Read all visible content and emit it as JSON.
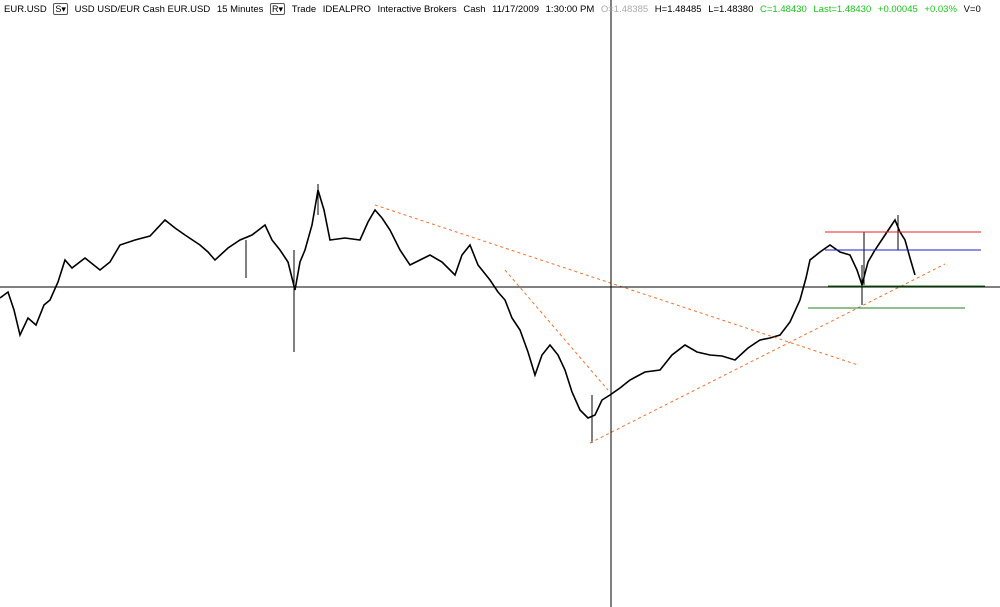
{
  "header": {
    "symbol": "EUR.USD",
    "s_button": "S▾",
    "description": "USD USD/EUR Cash EUR.USD",
    "interval": "15 Minutes",
    "r_button": "R▾",
    "mode": "Trade",
    "exchange": "IDEALPRO",
    "broker": "Interactive Brokers",
    "asset": "Cash",
    "date": "11/17/2009",
    "time": "1:30:00 PM",
    "open": "O=1.48385",
    "high": "H=1.48485",
    "low": "L=1.48380",
    "close": "C=1.48430",
    "last": "Last=1.48430",
    "change": "+0.00045",
    "change_pct": "+0.03%",
    "volume": "V=0"
  }
}
